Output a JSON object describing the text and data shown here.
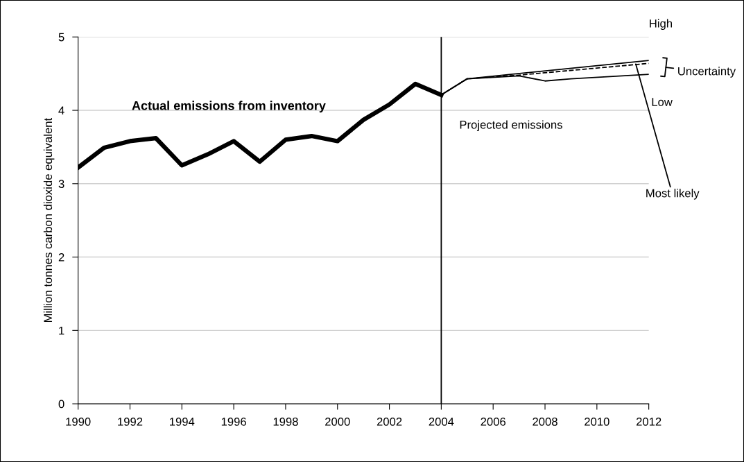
{
  "chart_data": {
    "type": "line",
    "ylabel": "Million tonnes carbon dioxide equivalent",
    "xlim": [
      1990,
      2012
    ],
    "xticks": [
      1990,
      1992,
      1994,
      1996,
      1998,
      2000,
      2002,
      2004,
      2006,
      2008,
      2010,
      2012
    ],
    "ylim": [
      0,
      5
    ],
    "yticks": [
      0,
      1,
      2,
      3,
      4,
      5
    ],
    "grid": "y",
    "legend": false,
    "marker": "none",
    "series": [
      {
        "color": "#000000",
        "line_style": "solid",
        "x": [
          1990,
          1991,
          1992,
          1993,
          1994,
          1995,
          1996,
          1997,
          1998,
          1999,
          2000,
          2001,
          2002,
          2003,
          2004
        ],
        "values": [
          3.22,
          3.49,
          3.58,
          3.62,
          3.25,
          3.4,
          3.58,
          3.3,
          3.6,
          3.65,
          3.58,
          3.87,
          4.08,
          4.36,
          4.21
        ]
      },
      {
        "color": "#000000",
        "line_style": "solid",
        "x": [
          2004,
          2005,
          2012
        ],
        "values": [
          4.21,
          4.43,
          4.68
        ]
      },
      {
        "color": "#000000",
        "line_style": "solid",
        "x": [
          2004,
          2005,
          2007,
          2008,
          2009,
          2012
        ],
        "values": [
          4.21,
          4.43,
          4.47,
          4.4,
          4.43,
          4.49
        ]
      },
      {
        "color": "#000000",
        "line_style": "dashed",
        "x": [
          2004,
          2005,
          2007,
          2012
        ],
        "values": [
          4.21,
          4.43,
          4.48,
          4.64
        ]
      }
    ],
    "ref_lines": [
      {
        "axis": "x",
        "value": 2004,
        "color": "#000000",
        "line_style": "solid"
      }
    ],
    "annotations": [
      "Actual emissions from inventory",
      "Projected emissions",
      "High",
      "Uncertainty",
      "Low",
      {
        "text": "Most likely",
        "x": 2011.5,
        "y": 4.63
      }
    ]
  }
}
